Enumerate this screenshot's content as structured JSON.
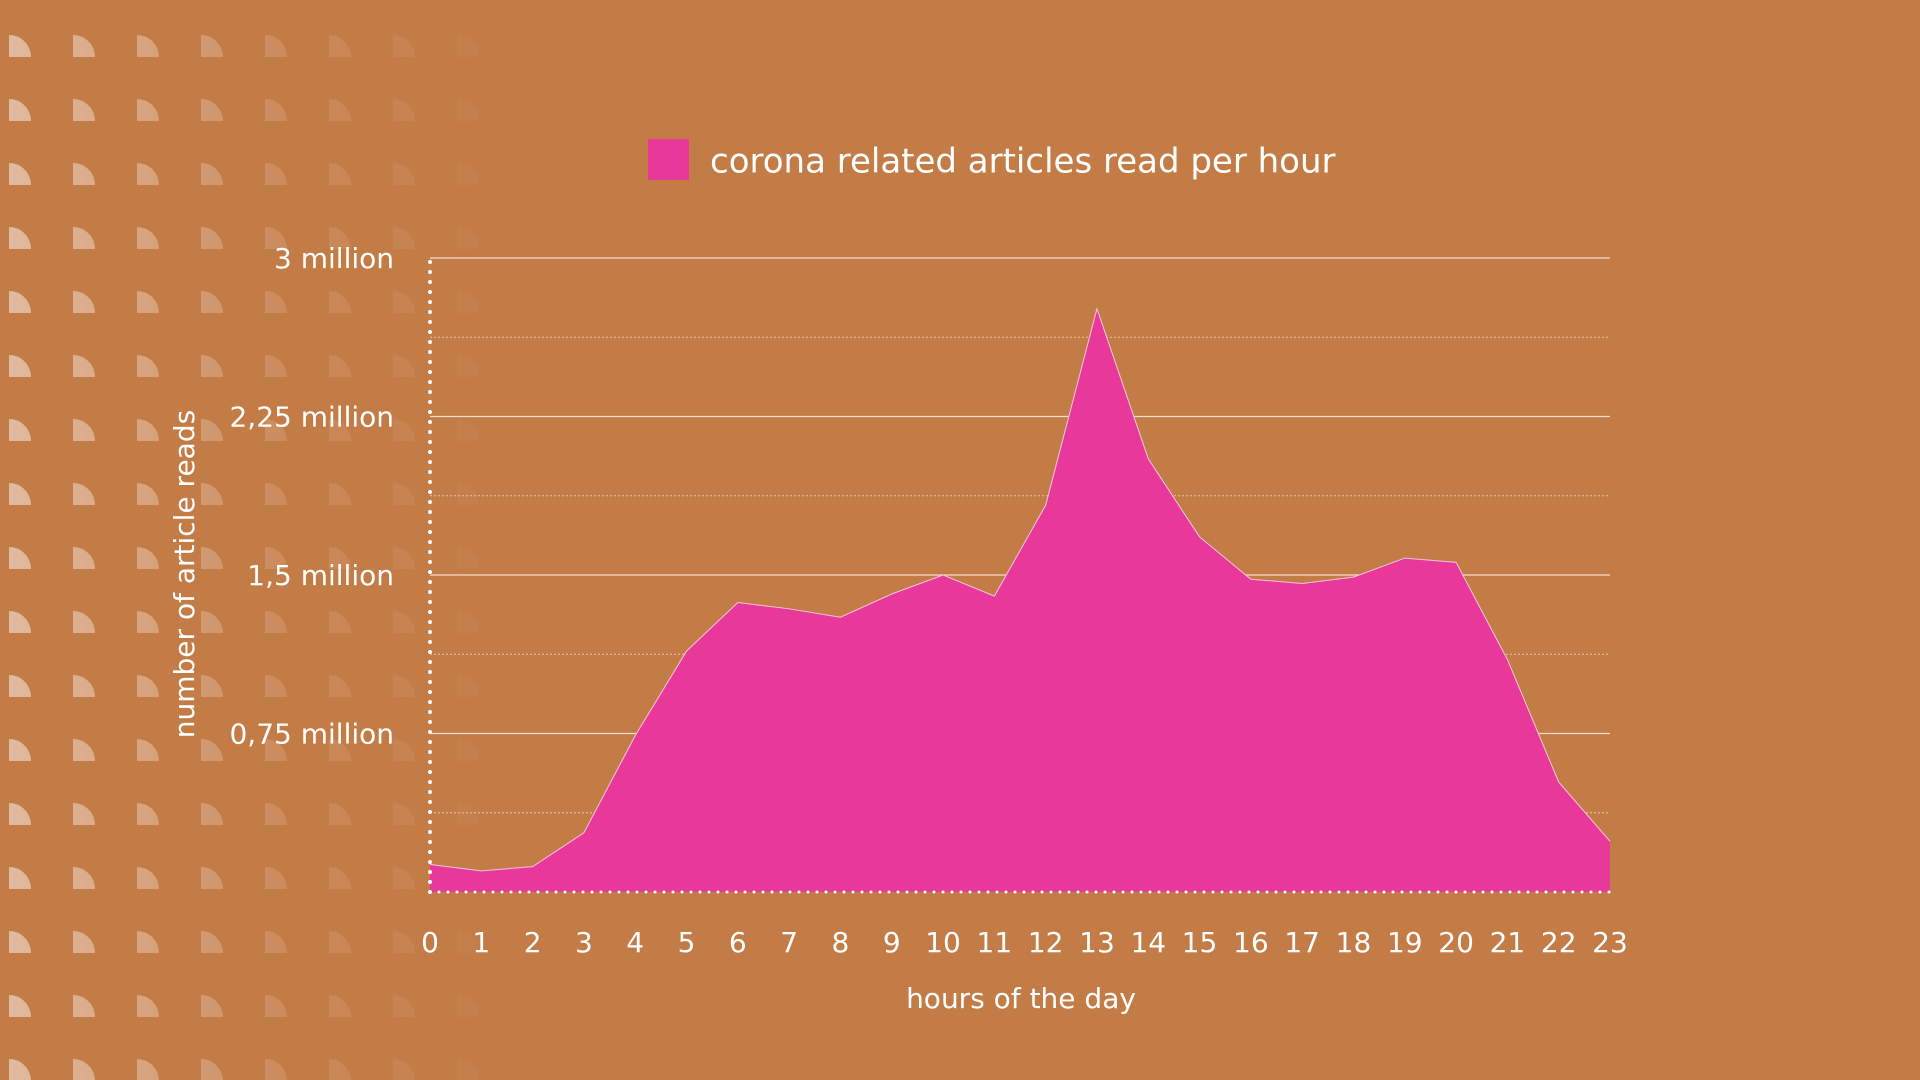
{
  "chart_data": {
    "type": "area",
    "legend": [
      {
        "label": "corona related articles read per hour",
        "color": "#e8399a"
      }
    ],
    "xlabel": "hours of the day",
    "ylabel": "number of article reads",
    "x": [
      0,
      1,
      2,
      3,
      4,
      5,
      6,
      7,
      8,
      9,
      10,
      11,
      12,
      13,
      14,
      15,
      16,
      17,
      18,
      19,
      20,
      21,
      22,
      23
    ],
    "x_tick_labels": [
      "0",
      "1",
      "2",
      "3",
      "4",
      "5",
      "6",
      "7",
      "8",
      "9",
      "10",
      "11",
      "12",
      "13",
      "14",
      "15",
      "16",
      "17",
      "18",
      "19",
      "20",
      "21",
      "22",
      "23"
    ],
    "y_ticks": [
      0,
      0.75,
      1.5,
      2.25,
      3
    ],
    "y_tick_labels": [
      "",
      "0,75 million",
      "1,5 million",
      "2,25 million",
      "3 million"
    ],
    "ylim": [
      0,
      3
    ],
    "y_unit": "million",
    "series": [
      {
        "name": "corona related articles read per hour",
        "color": "#e8399a",
        "values": [
          0.13,
          0.1,
          0.12,
          0.28,
          0.74,
          1.14,
          1.37,
          1.34,
          1.3,
          1.41,
          1.5,
          1.4,
          1.83,
          2.76,
          2.05,
          1.68,
          1.48,
          1.46,
          1.49,
          1.58,
          1.56,
          1.1,
          0.52,
          0.24
        ]
      }
    ],
    "grid": {
      "major": true,
      "minor": true
    },
    "legend_position": "top-center"
  },
  "colors": {
    "background": "#c47c47",
    "area": "#e8399a",
    "text": "#ffffff"
  }
}
